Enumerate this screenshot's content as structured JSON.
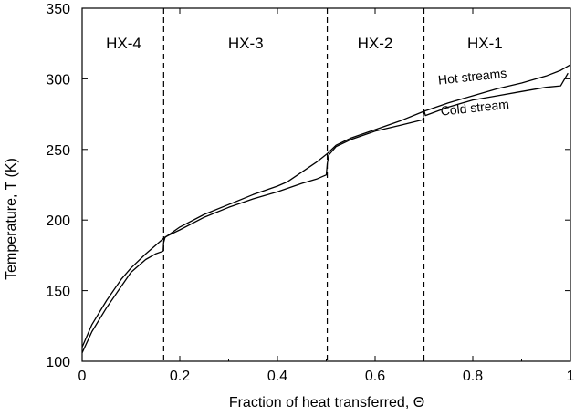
{
  "chart_data": {
    "type": "line",
    "xlabel": "Fraction of heat transferred, Θ",
    "ylabel": "Temperature, T (K)",
    "xlim": [
      0,
      1
    ],
    "ylim": [
      100,
      350
    ],
    "xticks": [
      0,
      0.2,
      0.4,
      0.6,
      0.8,
      1
    ],
    "xtick_labels": [
      "0",
      "0.2",
      "0.4",
      "0.6",
      "0.8",
      "1"
    ],
    "yticks": [
      100,
      150,
      200,
      250,
      300,
      350
    ],
    "ytick_labels": [
      "100",
      "150",
      "200",
      "250",
      "300",
      "350"
    ],
    "grid": false,
    "regions": [
      {
        "label": "HX-4",
        "x_center": 0.085
      },
      {
        "label": "HX-3",
        "x_center": 0.335
      },
      {
        "label": "HX-2",
        "x_center": 0.6
      },
      {
        "label": "HX-1",
        "x_center": 0.825
      }
    ],
    "dividers": [
      0.167,
      0.502,
      0.7
    ],
    "series": [
      {
        "name": "Hot streams",
        "x": [
          0,
          0.02,
          0.05,
          0.08,
          0.1,
          0.13,
          0.15,
          0.167,
          0.2,
          0.25,
          0.3,
          0.35,
          0.4,
          0.42,
          0.45,
          0.48,
          0.502,
          0.52,
          0.55,
          0.6,
          0.65,
          0.7,
          0.75,
          0.8,
          0.85,
          0.9,
          0.95,
          0.98,
          1.0
        ],
        "y": [
          110,
          126,
          143,
          158,
          166,
          176,
          182,
          187,
          195,
          204,
          211,
          218,
          224,
          227,
          234,
          241,
          247,
          253,
          258,
          264,
          270,
          277,
          283,
          288,
          293,
          297,
          302,
          306,
          310
        ]
      },
      {
        "name": "Cold stream",
        "x": [
          0,
          0.02,
          0.05,
          0.08,
          0.1,
          0.13,
          0.15,
          0.166,
          0.167,
          0.17,
          0.2,
          0.25,
          0.3,
          0.35,
          0.4,
          0.45,
          0.48,
          0.5,
          0.502,
          0.505,
          0.52,
          0.55,
          0.6,
          0.65,
          0.698,
          0.7,
          0.703,
          0.75,
          0.8,
          0.85,
          0.9,
          0.95,
          0.98,
          0.995
        ],
        "y": [
          106,
          121,
          138,
          153,
          163,
          172,
          176,
          178,
          184,
          188,
          193,
          202,
          209,
          215,
          220,
          226,
          229,
          232,
          240,
          246,
          252,
          257,
          263,
          267,
          271,
          278,
          274,
          280,
          285,
          288,
          291,
          294,
          295,
          304
        ]
      }
    ],
    "annotations": [
      {
        "text": "Hot streams",
        "x": 0.73,
        "y": 296
      },
      {
        "text": "Cold stream",
        "x": 0.735,
        "y": 274
      }
    ]
  }
}
